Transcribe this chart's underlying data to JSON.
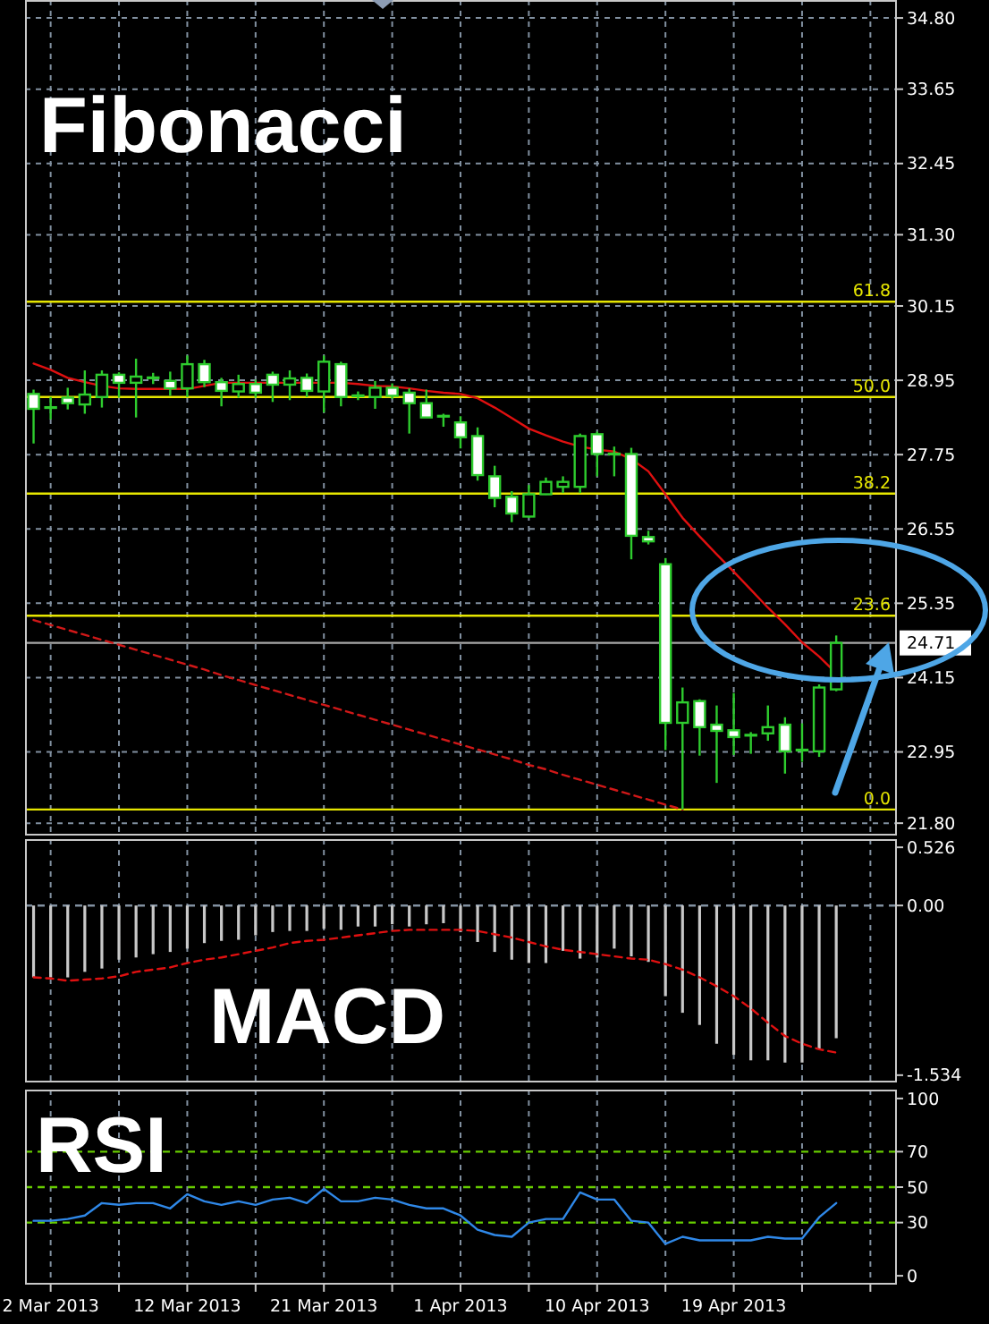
{
  "chart_data": [
    {
      "type": "candlestick",
      "title": "Fibonacci",
      "categories": [
        null,
        null,
        null,
        null,
        null,
        null,
        null,
        null,
        null,
        null,
        null,
        null,
        null,
        null,
        null,
        null,
        null,
        null,
        null,
        null,
        null,
        null,
        null,
        null,
        null,
        null,
        null,
        null,
        null,
        null,
        null,
        null,
        null,
        null,
        null,
        null,
        null,
        null,
        null,
        null,
        null,
        null,
        null,
        null,
        null,
        null,
        null,
        null,
        null,
        null,
        null
      ],
      "ohlc": [
        [
          28.73,
          28.8,
          27.93,
          28.49
        ],
        [
          28.51,
          28.68,
          28.32,
          28.51
        ],
        [
          28.67,
          28.83,
          28.48,
          28.58
        ],
        [
          28.56,
          29.11,
          28.41,
          28.72
        ],
        [
          28.68,
          29.11,
          28.51,
          29.04
        ],
        [
          29.04,
          29.08,
          28.67,
          28.91
        ],
        [
          28.91,
          29.3,
          28.35,
          29.01
        ],
        [
          28.99,
          29.07,
          28.89,
          28.99
        ],
        [
          28.94,
          29.09,
          28.7,
          28.82
        ],
        [
          28.82,
          29.35,
          28.68,
          29.21
        ],
        [
          29.21,
          29.28,
          28.84,
          28.92
        ],
        [
          28.92,
          28.99,
          28.53,
          28.78
        ],
        [
          28.77,
          29.04,
          28.67,
          28.89
        ],
        [
          28.89,
          28.96,
          28.67,
          28.75
        ],
        [
          29.04,
          29.09,
          28.6,
          28.88
        ],
        [
          28.88,
          29.11,
          28.63,
          28.98
        ],
        [
          28.99,
          29.06,
          28.68,
          28.78
        ],
        [
          28.77,
          29.35,
          28.43,
          29.25
        ],
        [
          29.21,
          29.25,
          28.53,
          28.68
        ],
        [
          28.7,
          28.77,
          28.63,
          28.7
        ],
        [
          28.68,
          28.94,
          28.49,
          28.83
        ],
        [
          28.83,
          28.9,
          28.65,
          28.7
        ],
        [
          28.75,
          28.82,
          28.09,
          28.58
        ],
        [
          28.58,
          28.8,
          28.35,
          28.35
        ],
        [
          28.37,
          28.41,
          28.2,
          28.37
        ],
        [
          28.27,
          28.37,
          27.85,
          28.03
        ],
        [
          28.05,
          28.19,
          27.33,
          27.42
        ],
        [
          27.4,
          27.57,
          26.9,
          27.05
        ],
        [
          27.07,
          27.16,
          26.66,
          26.8
        ],
        [
          26.75,
          27.26,
          26.73,
          27.11
        ],
        [
          27.11,
          27.38,
          27.1,
          27.31
        ],
        [
          27.23,
          27.4,
          27.13,
          27.31
        ],
        [
          27.23,
          28.09,
          27.13,
          28.05
        ],
        [
          28.08,
          28.12,
          27.4,
          27.76
        ],
        [
          27.76,
          27.88,
          27.4,
          27.76
        ],
        [
          27.76,
          27.86,
          26.06,
          26.44
        ],
        [
          26.42,
          26.52,
          26.3,
          26.35
        ],
        [
          25.98,
          26.08,
          22.98,
          23.42
        ],
        [
          23.42,
          23.99,
          22.02,
          23.75
        ],
        [
          23.77,
          23.8,
          22.89,
          23.35
        ],
        [
          23.39,
          23.7,
          22.45,
          23.29
        ],
        [
          23.3,
          23.9,
          22.9,
          23.19
        ],
        [
          23.22,
          23.27,
          22.92,
          23.22
        ],
        [
          23.25,
          23.7,
          23.13,
          23.35
        ],
        [
          23.39,
          23.51,
          22.6,
          22.96
        ],
        [
          22.98,
          23.41,
          22.79,
          22.98
        ],
        [
          22.96,
          24.04,
          22.87,
          23.99
        ],
        [
          23.96,
          24.83,
          23.93,
          24.71
        ],
        null,
        null,
        null
      ],
      "color": "#2ecc2e",
      "colors": [
        "#ffffff",
        "#2ecc2e",
        "#ffffff",
        "#000000",
        "#000000",
        "#ffffff",
        "#000000",
        "#2ecc2e",
        "#ffffff",
        "#000000",
        "#ffffff",
        "#ffffff",
        "#000000",
        "#ffffff",
        "#ffffff",
        "#000000",
        "#ffffff",
        "#000000",
        "#ffffff",
        "#2ecc2e",
        "#000000",
        "#ffffff",
        "#ffffff",
        "#ffffff",
        "#2ecc2e",
        "#ffffff",
        "#ffffff",
        "#ffffff",
        "#ffffff",
        "#000000",
        "#000000",
        "#000000",
        "#000000",
        "#ffffff",
        "#2ecc2e",
        "#ffffff",
        "#ffffff",
        "#ffffff",
        "#000000",
        "#ffffff",
        "#ffffff",
        "#ffffff",
        "#2ecc2e",
        "#000000",
        "#ffffff",
        "#2ecc2e",
        "#000000",
        "#000000",
        null,
        null,
        null
      ],
      "series": [
        {
          "type": "line",
          "values": [
            29.22,
            29.12,
            28.99,
            28.92,
            28.86,
            28.82,
            28.81,
            28.81,
            28.81,
            28.81,
            28.86,
            28.91,
            28.91,
            28.91,
            28.91,
            28.91,
            28.91,
            28.91,
            28.91,
            28.89,
            28.86,
            28.85,
            28.82,
            28.78,
            28.75,
            28.73,
            28.66,
            28.51,
            28.34,
            28.17,
            28.06,
            27.96,
            27.88,
            27.83,
            27.8,
            27.68,
            27.48,
            27.11,
            26.73,
            26.43,
            26.14,
            25.86,
            25.57,
            25.28,
            25.01,
            24.72,
            24.49,
            24.22,
            null,
            null,
            null
          ],
          "color": "#e01010"
        },
        {
          "type": "line",
          "values": [
            25.08,
            25.0,
            24.92,
            24.84,
            24.76,
            24.68,
            24.6,
            24.52,
            24.44,
            24.36,
            24.28,
            24.19,
            24.11,
            24.03,
            23.95,
            23.87,
            23.79,
            23.71,
            23.63,
            23.55,
            23.47,
            23.39,
            23.31,
            23.23,
            23.15,
            23.07,
            22.99,
            22.91,
            22.83,
            22.74,
            22.67,
            22.58,
            22.5,
            22.42,
            22.34,
            22.26,
            22.18,
            22.1,
            22.02,
            null,
            null,
            null,
            null,
            null,
            null,
            null,
            null,
            null,
            null,
            null,
            null
          ],
          "color": "#d01818",
          "line_style": "dashed"
        }
      ],
      "ylim": [
        21.6,
        35.09
      ],
      "yticks": [
        {
          "value": 34.8,
          "label": "34.80"
        },
        33.65,
        32.45,
        {
          "value": 31.3,
          "label": "31.30"
        },
        30.15,
        28.95,
        27.75,
        26.55,
        25.35,
        24.15,
        22.95,
        {
          "value": 21.8,
          "label": "21.80"
        }
      ],
      "tick_labels": "y",
      "grid": true,
      "ref_lines": [
        {
          "axis": "y",
          "value": 30.22,
          "color": "#e6e600"
        },
        {
          "axis": "y",
          "value": 28.68,
          "color": "#e6e600"
        },
        {
          "axis": "y",
          "value": 27.12,
          "color": "#e6e600"
        },
        {
          "axis": "y",
          "value": 25.15,
          "color": "#e6e600"
        },
        {
          "axis": "y",
          "value": 22.02,
          "color": "#e6e600"
        },
        {
          "axis": "y",
          "value": 24.71,
          "label": "24.71",
          "color": "#a8a8a8"
        }
      ],
      "annotations": [
        {
          "text": "61.8",
          "y": 30.22
        },
        {
          "text": "50.0",
          "y": 28.68
        },
        {
          "text": "38.2",
          "y": 27.12
        },
        {
          "text": "23.6",
          "y": 25.15
        },
        {
          "text": "0.0",
          "y": 22.02
        }
      ]
    },
    {
      "type": "bar",
      "title": "MACD",
      "categories": [
        null,
        null,
        null,
        null,
        null,
        null,
        null,
        null,
        null,
        null,
        null,
        null,
        null,
        null,
        null,
        null,
        null,
        null,
        null,
        null,
        null,
        null,
        null,
        null,
        null,
        null,
        null,
        null,
        null,
        null,
        null,
        null,
        null,
        null,
        null,
        null,
        null,
        null,
        null,
        null,
        null,
        null,
        null,
        null,
        null,
        null,
        null,
        null,
        null,
        null,
        null
      ],
      "series": [
        {
          "values": [
            -0.65,
            -0.65,
            -0.65,
            -0.6,
            -0.57,
            -0.49,
            -0.47,
            -0.44,
            -0.42,
            -0.39,
            -0.34,
            -0.32,
            -0.31,
            -0.27,
            -0.24,
            -0.23,
            -0.23,
            -0.21,
            -0.22,
            -0.19,
            -0.19,
            -0.17,
            -0.19,
            -0.17,
            -0.16,
            -0.24,
            -0.33,
            -0.42,
            -0.49,
            -0.52,
            -0.52,
            -0.41,
            -0.48,
            -0.47,
            -0.39,
            -0.46,
            -0.51,
            -0.82,
            -0.97,
            -1.08,
            -1.25,
            -1.35,
            -1.4,
            -1.4,
            -1.42,
            -1.42,
            -1.3,
            -1.2,
            null,
            null,
            null
          ],
          "color": "#c8c8c8"
        },
        {
          "type": "line",
          "values": [
            -0.65,
            -0.66,
            -0.68,
            -0.67,
            -0.66,
            -0.64,
            -0.6,
            -0.58,
            -0.56,
            -0.52,
            -0.49,
            -0.47,
            -0.44,
            -0.41,
            -0.38,
            -0.34,
            -0.32,
            -0.31,
            -0.29,
            -0.27,
            -0.25,
            -0.23,
            -0.22,
            -0.22,
            -0.22,
            -0.22,
            -0.23,
            -0.26,
            -0.29,
            -0.33,
            -0.37,
            -0.4,
            -0.42,
            -0.44,
            -0.46,
            -0.48,
            -0.49,
            -0.53,
            -0.58,
            -0.65,
            -0.73,
            -0.82,
            -0.93,
            -1.06,
            -1.18,
            -1.25,
            -1.3,
            -1.33,
            null,
            null,
            null
          ],
          "color": "#e01010",
          "line_style": "dashed"
        }
      ],
      "ylim": [
        -1.6,
        0.6
      ],
      "yticks": [
        0.526,
        {
          "value": 0,
          "label": "0.00"
        },
        -1.534
      ],
      "tick_labels": "y",
      "grid": "x",
      "ref_lines": [
        {
          "axis": "y",
          "value": 0,
          "color": "#8190a0",
          "line_style": "dashed"
        }
      ]
    },
    {
      "type": "line",
      "title": "RSI",
      "categories": [
        null,
        "2 Mar 2013",
        null,
        null,
        null,
        null,
        null,
        null,
        null,
        "12 Mar 2013",
        null,
        null,
        null,
        null,
        null,
        null,
        null,
        "21 Mar 2013",
        null,
        null,
        null,
        null,
        null,
        null,
        null,
        "1 Apr 2013",
        null,
        null,
        null,
        null,
        null,
        null,
        null,
        "10 Apr 2013",
        null,
        null,
        null,
        null,
        null,
        null,
        null,
        "19 Apr 2013",
        null,
        null,
        null,
        null,
        null,
        null,
        null,
        null,
        null
      ],
      "values": [
        31,
        31,
        32,
        34,
        41,
        40,
        41,
        41,
        38,
        46,
        42,
        40,
        42,
        40,
        43,
        44,
        41,
        49,
        42,
        42,
        44,
        43,
        40,
        38,
        38,
        34,
        26,
        23,
        22,
        30,
        32,
        32,
        47,
        43,
        43,
        31,
        30,
        18,
        22,
        20,
        20,
        20,
        20,
        22,
        21,
        21,
        33,
        41,
        null,
        null,
        null
      ],
      "color": "#2f88e8",
      "ylim": [
        -5,
        105
      ],
      "yticks": [
        100,
        70,
        50,
        30,
        0
      ],
      "grid": "x",
      "ref_lines": [
        {
          "axis": "y",
          "value": 70,
          "color": "#66cc00",
          "line_style": "dashed"
        },
        {
          "axis": "y",
          "value": 50,
          "color": "#66cc00",
          "line_style": "dashed"
        },
        {
          "axis": "y",
          "value": 30,
          "color": "#66cc00",
          "line_style": "dashed"
        }
      ]
    }
  ]
}
